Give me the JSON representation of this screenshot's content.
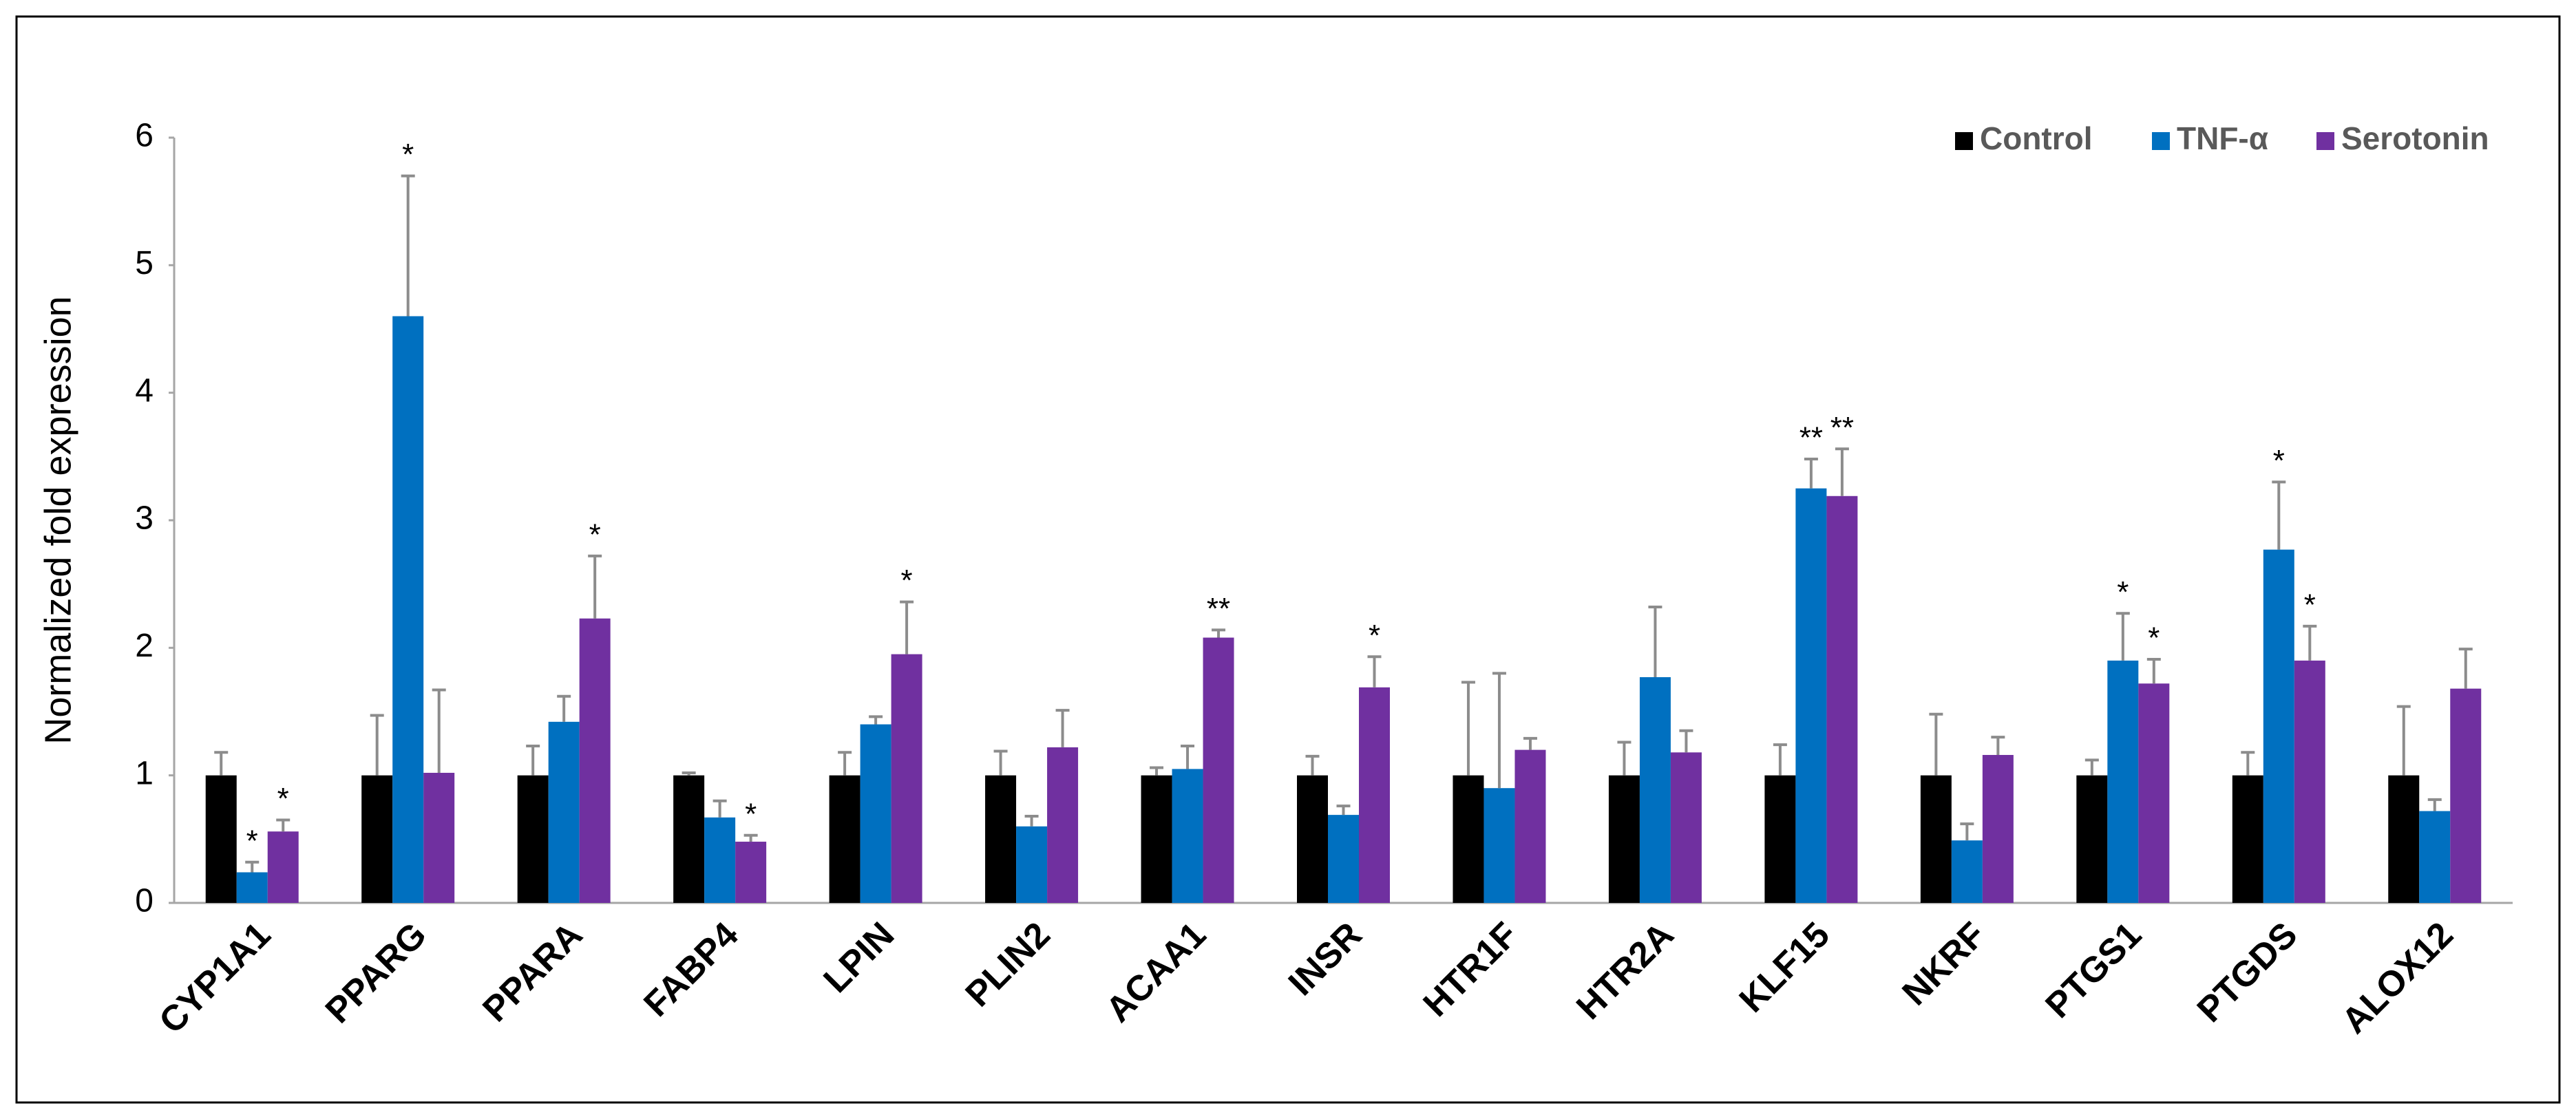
{
  "chart_data": {
    "type": "bar",
    "y_label": "Normalized fold expression",
    "categories": [
      "CYP1A1",
      "PPARG",
      "PPARA",
      "FABP4",
      "LPIN",
      "PLIN2",
      "ACAA1",
      "INSR",
      "HTR1F",
      "HTR2A",
      "KLF15",
      "NKRF",
      "PTGS1",
      "PTGDS",
      "ALOX12"
    ],
    "series": [
      {
        "name": "Control",
        "color": "#000000",
        "values": [
          1,
          1,
          1,
          1,
          1,
          1,
          1,
          1,
          1,
          1,
          1,
          1,
          1,
          1,
          1
        ],
        "errors": [
          0.18,
          0.47,
          0.23,
          0.02,
          0.18,
          0.19,
          0.06,
          0.15,
          0.73,
          0.26,
          0.24,
          0.48,
          0.12,
          0.18,
          0.54
        ],
        "annotations": [
          null,
          null,
          null,
          null,
          null,
          null,
          null,
          null,
          null,
          null,
          null,
          null,
          null,
          null,
          null
        ]
      },
      {
        "name": "TNF-α",
        "color": "#0070c0",
        "values": [
          0.24,
          4.6,
          1.42,
          0.67,
          1.4,
          0.6,
          1.05,
          0.69,
          0.9,
          1.77,
          3.25,
          0.49,
          1.9,
          2.77,
          0.72
        ],
        "errors": [
          0.08,
          1.1,
          0.2,
          0.13,
          0.06,
          0.08,
          0.18,
          0.07,
          0.9,
          0.55,
          0.23,
          0.13,
          0.37,
          0.53,
          0.09
        ],
        "annotations": [
          "*",
          "*",
          null,
          null,
          null,
          null,
          null,
          null,
          null,
          null,
          "**",
          null,
          "*",
          "*",
          null
        ]
      },
      {
        "name": "Serotonin",
        "color": "#7030a0",
        "values": [
          0.56,
          1.02,
          2.23,
          0.48,
          1.95,
          1.22,
          2.08,
          1.69,
          1.2,
          1.18,
          3.19,
          1.16,
          1.72,
          1.9,
          1.68
        ],
        "errors": [
          0.09,
          0.65,
          0.49,
          0.05,
          0.41,
          0.29,
          0.06,
          0.24,
          0.09,
          0.17,
          0.37,
          0.14,
          0.19,
          0.27,
          0.31
        ],
        "annotations": [
          "*",
          null,
          "*",
          "*",
          "*",
          null,
          "**",
          "*",
          null,
          null,
          "**",
          null,
          "*",
          "*",
          null
        ]
      }
    ],
    "ylim": [
      0,
      6
    ],
    "yticks": [
      0,
      1,
      2,
      3,
      4,
      5,
      6
    ],
    "grid": false,
    "legend": "top-right"
  }
}
